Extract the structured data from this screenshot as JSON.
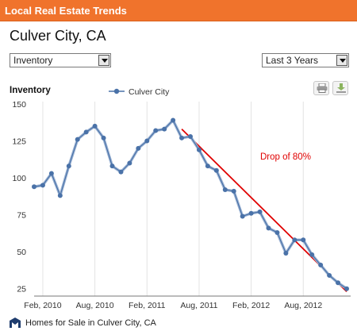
{
  "header": {
    "title": "Local Real Estate Trends"
  },
  "location": {
    "title": "Culver City, CA"
  },
  "controls": {
    "metric_select": {
      "value": "Inventory"
    },
    "range_select": {
      "value": "Last 3 Years"
    }
  },
  "toolbar": {
    "print_icon": "printer-icon",
    "download_icon": "download-icon"
  },
  "colors": {
    "header_bg": "#f0732c",
    "series": "#4a72a8",
    "trend": "#e00000"
  },
  "chart_data": {
    "type": "line",
    "title": "Inventory",
    "series": [
      {
        "name": "Culver City",
        "x": [
          "2010-01",
          "2010-02",
          "2010-03",
          "2010-04",
          "2010-05",
          "2010-06",
          "2010-07",
          "2010-08",
          "2010-09",
          "2010-10",
          "2010-11",
          "2010-12",
          "2011-01",
          "2011-02",
          "2011-03",
          "2011-04",
          "2011-05",
          "2011-06",
          "2011-07",
          "2011-08",
          "2011-09",
          "2011-10",
          "2011-11",
          "2011-12",
          "2012-01",
          "2012-02",
          "2012-03",
          "2012-04",
          "2012-05",
          "2012-06",
          "2012-07",
          "2012-08",
          "2012-09",
          "2012-10",
          "2012-11",
          "2012-12",
          "2013-01"
        ],
        "values": [
          94,
          95,
          103,
          88,
          108,
          126,
          131,
          135,
          127,
          108,
          104,
          110,
          120,
          125,
          132,
          133,
          139,
          127,
          128,
          119,
          108,
          105,
          92,
          91,
          74,
          76,
          77,
          66,
          63,
          49,
          58,
          58,
          48,
          41,
          34,
          29,
          25
        ]
      }
    ],
    "annotation": {
      "text": "Drop of 80%",
      "from": [
        "2011-06",
        133
      ],
      "to": [
        "2013-01",
        23
      ]
    },
    "yticks": [
      25,
      50,
      75,
      100,
      125,
      150
    ],
    "ylim": [
      20,
      150
    ],
    "xticks": [
      {
        "label": "Feb, 2010",
        "x": "2010-02"
      },
      {
        "label": "Aug, 2010",
        "x": "2010-08"
      },
      {
        "label": "Feb, 2011",
        "x": "2011-02"
      },
      {
        "label": "Aug, 2011",
        "x": "2011-08"
      },
      {
        "label": "Feb, 2012",
        "x": "2012-02"
      },
      {
        "label": "Aug, 2012",
        "x": "2012-08"
      }
    ],
    "legend": "top-center",
    "grid": "vertical"
  },
  "footer": {
    "link_text": "Homes for Sale in Culver City, CA"
  }
}
